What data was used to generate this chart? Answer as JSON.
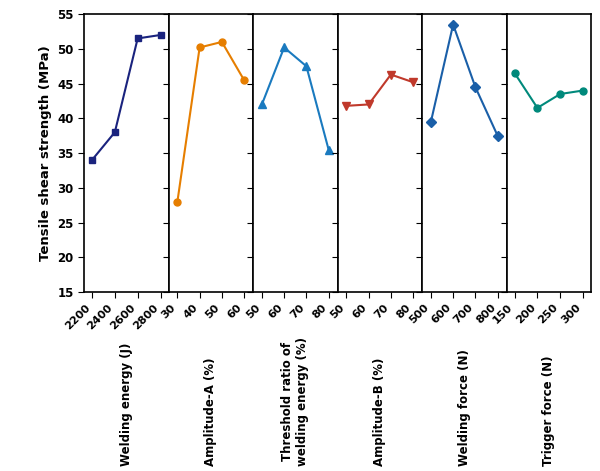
{
  "ylabel": "Tensile shear strength (MPa)",
  "ylim": [
    15,
    55
  ],
  "yticks": [
    15,
    20,
    25,
    30,
    35,
    40,
    45,
    50,
    55
  ],
  "background_color": "#ffffff",
  "series": [
    {
      "label": "Welding energy (J)",
      "x": [
        2200,
        2400,
        2600,
        2800
      ],
      "y": [
        34,
        38,
        51.5,
        52
      ],
      "color": "#1a237e",
      "marker": "s",
      "markersize": 5,
      "xticks": [
        2200,
        2400,
        2600,
        2800
      ],
      "xmin": 2130,
      "xmax": 2870
    },
    {
      "label": "Amplitude-A (%)",
      "x": [
        30,
        40,
        50,
        60
      ],
      "y": [
        28,
        50.2,
        51,
        45.5
      ],
      "color": "#e67e00",
      "marker": "o",
      "markersize": 5,
      "xticks": [
        30,
        40,
        50,
        60
      ],
      "xmin": 26,
      "xmax": 64
    },
    {
      "label": "Threshold ratio of\nwelding energy (%)",
      "x": [
        50,
        60,
        70,
        80
      ],
      "y": [
        42,
        50.2,
        47.5,
        35.5
      ],
      "color": "#1a7abf",
      "marker": "^",
      "markersize": 6,
      "xticks": [
        50,
        60,
        70,
        80
      ],
      "xmin": 46,
      "xmax": 84
    },
    {
      "label": "Amplitude-B (%)",
      "x": [
        50,
        60,
        70,
        80
      ],
      "y": [
        41.8,
        42,
        46.3,
        45.2
      ],
      "color": "#c0392b",
      "marker": "v",
      "markersize": 6,
      "xticks": [
        50,
        60,
        70,
        80
      ],
      "xmin": 46,
      "xmax": 84
    },
    {
      "label": "Welding force (N)",
      "x": [
        500,
        600,
        700,
        800
      ],
      "y": [
        39.5,
        53.5,
        44.5,
        37.5
      ],
      "color": "#1a5fa8",
      "marker": "D",
      "markersize": 5,
      "xticks": [
        500,
        600,
        700,
        800
      ],
      "xmin": 460,
      "xmax": 840
    },
    {
      "label": "Trigger force (N)",
      "x": [
        150,
        200,
        250,
        300
      ],
      "y": [
        46.5,
        41.5,
        43.5,
        44
      ],
      "color": "#00897b",
      "marker": "o",
      "markersize": 5,
      "xticks": [
        150,
        200,
        250,
        300
      ],
      "xmin": 132,
      "xmax": 318
    }
  ]
}
